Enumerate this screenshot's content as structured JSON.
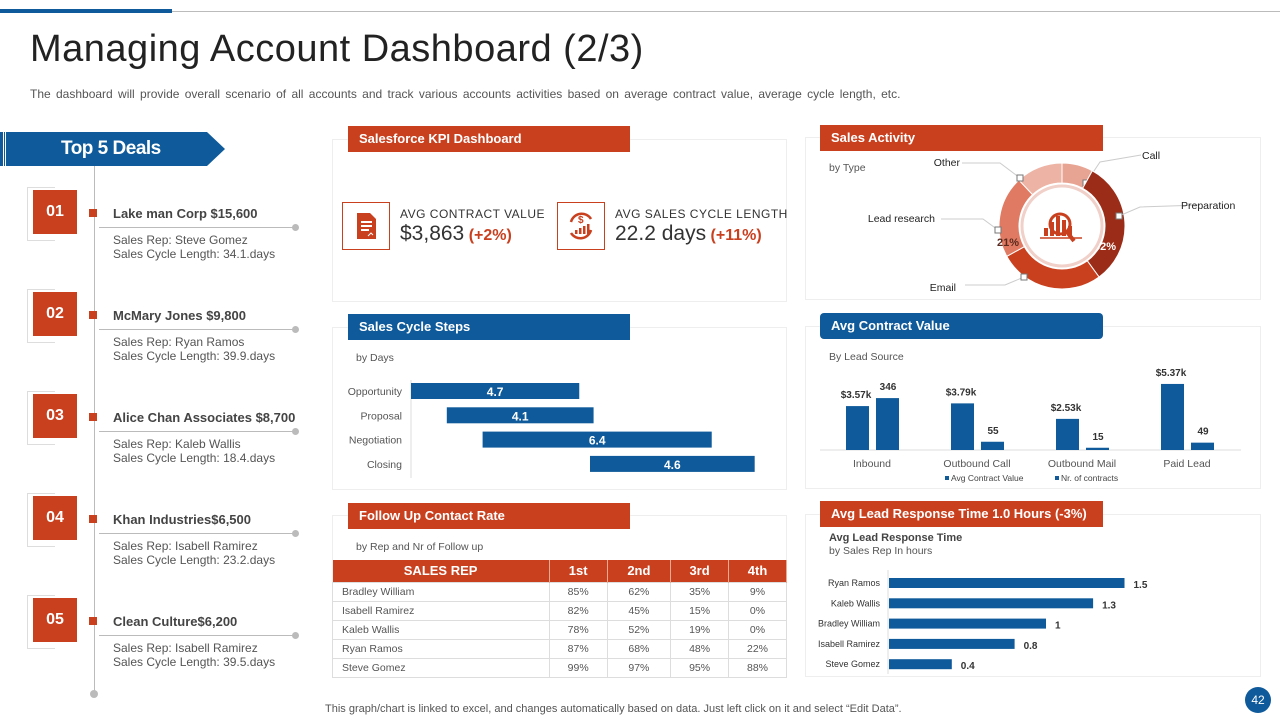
{
  "header": {
    "title": "Managing Account Dashboard (2/3)",
    "subtitle": "The dashboard will provide overall scenario of all accounts and track various accounts activities based on average contract value, average cycle length, etc."
  },
  "deals": {
    "title": "Top 5 Deals",
    "items": [
      {
        "num": "01",
        "name": "Lake man Corp $15,600",
        "rep": "Sales Rep: Steve Gomez",
        "cycle": "Sales Cycle Length: 34.1.days"
      },
      {
        "num": "02",
        "name": "McMary Jones $9,800",
        "rep": "Sales Rep: Ryan Ramos",
        "cycle": "Sales Cycle Length: 39.9.days"
      },
      {
        "num": "03",
        "name": "Alice Chan Associates $8,700",
        "rep": "Sales Rep: Kaleb Wallis",
        "cycle": "Sales Cycle Length: 18.4.days"
      },
      {
        "num": "04",
        "name": "Khan Industries$6,500",
        "rep": "Sales Rep: Isabell Ramirez",
        "cycle": "Sales Cycle Length: 23.2.days"
      },
      {
        "num": "05",
        "name": "Clean Culture$6,200",
        "rep": "Sales Rep: Isabell Ramirez",
        "cycle": "Sales Cycle Length: 39.5.days"
      }
    ]
  },
  "kpi": {
    "title": "Salesforce KPI Dashboard",
    "contract": {
      "label": "AVG CONTRACT VALUE",
      "value": "$3,863",
      "change": "(+2%)",
      "icon": "document-icon"
    },
    "cycle": {
      "label": "AVG SALES CYCLE LENGTH",
      "value": "22.2 days",
      "change": "(+11%)",
      "icon": "dollar-cycle-icon"
    }
  },
  "colors": {
    "orange": "#C9401F",
    "blue": "#0E5A9A"
  },
  "followup": {
    "title": "Follow Up Contact Rate",
    "subtitle": "by Rep and Nr of Follow up",
    "columns": [
      "SALES REP",
      "1st",
      "2nd",
      "3rd",
      "4th"
    ],
    "rows": [
      [
        "Bradley William",
        "85%",
        "62%",
        "35%",
        "9%"
      ],
      [
        "Isabell Ramirez",
        "82%",
        "45%",
        "15%",
        "0%"
      ],
      [
        "Kaleb Wallis",
        "78%",
        "52%",
        "19%",
        "0%"
      ],
      [
        "Ryan Ramos",
        "87%",
        "68%",
        "48%",
        "22%"
      ],
      [
        "Steve Gomez",
        "99%",
        "97%",
        "95%",
        "88%"
      ]
    ]
  },
  "chart_data": [
    {
      "id": "sales_cycle",
      "type": "bar",
      "orientation": "horizontal",
      "title": "Sales Cycle Steps",
      "subtitle": "by Days",
      "categories": [
        "Opportunity",
        "Proposal",
        "Negotiation",
        "Closing"
      ],
      "start": [
        0,
        1,
        2,
        5
      ],
      "values": [
        4.7,
        4.1,
        6.4,
        4.6
      ],
      "labels": [
        "4.7",
        "4.1",
        "6.4",
        "4.6"
      ],
      "color": "#0E5A9A"
    },
    {
      "id": "sales_activity",
      "type": "pie",
      "donut": true,
      "title": "Sales Activity",
      "subtitle": "by Type",
      "categories": [
        "Call",
        "Preparation",
        "Email",
        "Lead research",
        "Other"
      ],
      "values": [
        8,
        32,
        27,
        21,
        12
      ],
      "labels": [
        "8%",
        "32%",
        "27%",
        "21%",
        "12%"
      ],
      "colors": [
        "#E8A493",
        "#9B2C17",
        "#C9401F",
        "#E07A62",
        "#EDB3A4"
      ],
      "center_icon": "chart-magnifier-icon"
    },
    {
      "id": "avg_contract",
      "type": "bar",
      "title": "Avg Contract Value",
      "subtitle": "By Lead Source",
      "categories": [
        "Inbound",
        "Outbound Call",
        "Outbound Mail",
        "Paid Lead"
      ],
      "series": [
        {
          "name": "Avg Contract Value",
          "values": [
            3.57,
            3.79,
            2.53,
            5.37
          ],
          "labels": [
            "$3.57k",
            "$3.79k",
            "$2.53k",
            "$5.37k"
          ]
        },
        {
          "name": "Nr. of contracts",
          "values": [
            346,
            55,
            15,
            49
          ],
          "labels": [
            "346",
            "55",
            "15",
            "49"
          ]
        }
      ],
      "legend": "bottom",
      "color": "#0E5A9A"
    },
    {
      "id": "lead_response",
      "type": "bar",
      "orientation": "horizontal",
      "title": "Avg Lead Response Time 1.0 Hours (-3%)",
      "chart_title": "Avg Lead Response Time",
      "subtitle": "by Sales Rep In hours",
      "categories": [
        "Ryan Ramos",
        "Kaleb Wallis",
        "Bradley William",
        "Isabell Ramirez",
        "Steve Gomez"
      ],
      "values": [
        1.5,
        1.3,
        1,
        0.8,
        0.4
      ],
      "labels": [
        "1.5",
        "1.3",
        "1",
        "0.8",
        "0.4"
      ],
      "color": "#0E5A9A"
    }
  ],
  "footer": {
    "note": "This graph/chart is linked to excel, and changes automatically based on data. Just left click on it and select “Edit Data”.",
    "page": "42"
  }
}
